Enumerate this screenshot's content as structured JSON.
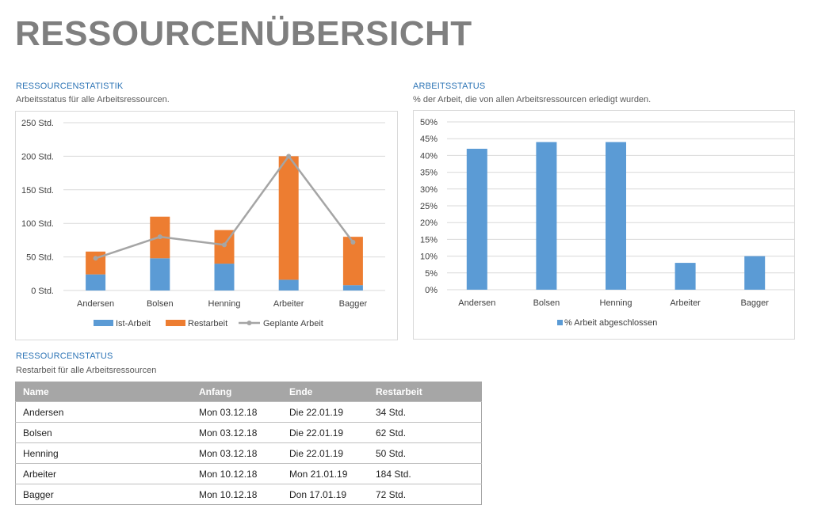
{
  "page": {
    "title": "RESSOURCENÜBERSICHT"
  },
  "sections": {
    "stats": {
      "title": "RESSOURCENSTATISTIK",
      "subtitle": "Arbeitsstatus für alle Arbeitsressourcen."
    },
    "work": {
      "title": "ARBEITSSTATUS",
      "subtitle": "% der Arbeit, die von allen Arbeitsressourcen erledigt wurden."
    },
    "status": {
      "title": "RESSOURCENSTATUS",
      "subtitle": "Restarbeit für alle Arbeitsressourcen"
    }
  },
  "colors": {
    "blue": "#5b9bd5",
    "orange": "#ed7d31",
    "gray_line": "#a5a5a5",
    "header_gray": "#a6a6a6",
    "title_gray": "#7f7f7f",
    "section_blue": "#2e75b6"
  },
  "chart_data": [
    {
      "type": "bar",
      "stacked": true,
      "categories": [
        "Andersen",
        "Bolsen",
        "Henning",
        "Arbeiter",
        "Bagger"
      ],
      "series": [
        {
          "name": "Ist-Arbeit",
          "kind": "bar",
          "color": "#5b9bd5",
          "values": [
            24,
            48,
            40,
            16,
            8
          ]
        },
        {
          "name": "Restarbeit",
          "kind": "bar",
          "color": "#ed7d31",
          "values": [
            34,
            62,
            50,
            184,
            72
          ]
        },
        {
          "name": "Geplante Arbeit",
          "kind": "line",
          "color": "#a5a5a5",
          "values": [
            48,
            80,
            68,
            200,
            72
          ]
        }
      ],
      "ylim": [
        0,
        250
      ],
      "yticks": [
        "0 Std.",
        "50 Std.",
        "100 Std.",
        "150 Std.",
        "200 Std.",
        "250 Std."
      ],
      "ytick_values": [
        0,
        50,
        100,
        150,
        200,
        250
      ],
      "grid": true,
      "legend": "bottom"
    },
    {
      "type": "bar",
      "categories": [
        "Andersen",
        "Bolsen",
        "Henning",
        "Arbeiter",
        "Bagger"
      ],
      "series": [
        {
          "name": "% Arbeit abgeschlossen",
          "color": "#5b9bd5",
          "values": [
            42,
            44,
            44,
            8,
            10
          ]
        }
      ],
      "ylim": [
        0,
        50
      ],
      "yticks": [
        "0%",
        "5%",
        "10%",
        "15%",
        "20%",
        "25%",
        "30%",
        "35%",
        "40%",
        "45%",
        "50%"
      ],
      "ytick_values": [
        0,
        5,
        10,
        15,
        20,
        25,
        30,
        35,
        40,
        45,
        50
      ],
      "grid": true,
      "legend": "bottom"
    }
  ],
  "table": {
    "headers": [
      "Name",
      "Anfang",
      "Ende",
      "Restarbeit"
    ],
    "rows": [
      [
        "Andersen",
        "Mon 03.12.18",
        "Die 22.01.19",
        "34 Std."
      ],
      [
        "Bolsen",
        "Mon 03.12.18",
        "Die 22.01.19",
        "62 Std."
      ],
      [
        "Henning",
        "Mon 03.12.18",
        "Die 22.01.19",
        "50 Std."
      ],
      [
        "Arbeiter",
        "Mon 10.12.18",
        "Mon 21.01.19",
        "184 Std."
      ],
      [
        "Bagger",
        "Mon 10.12.18",
        "Don 17.01.19",
        "72 Std."
      ]
    ]
  }
}
